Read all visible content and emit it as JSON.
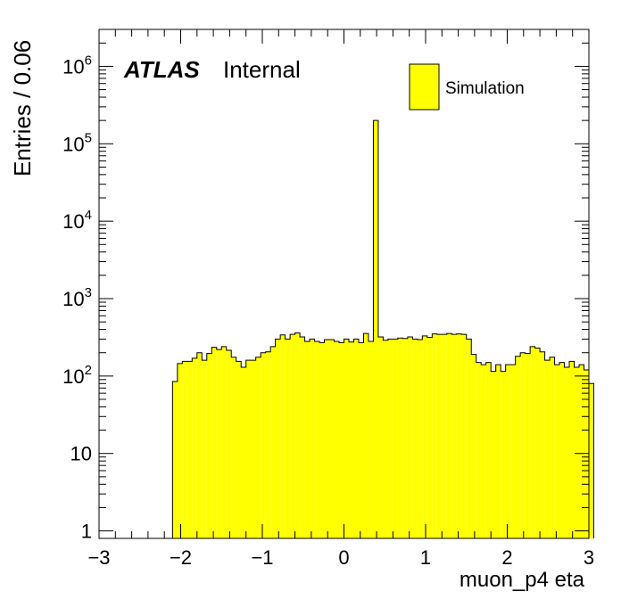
{
  "chart_data": {
    "type": "bar",
    "title": "",
    "xlabel": "muon_p4 eta",
    "ylabel": "Entries / 0.06",
    "xlim": [
      -3,
      3
    ],
    "ylim": [
      0.8,
      3000000
    ],
    "log_y": true,
    "grid": false,
    "bin_width": 0.06,
    "bar_color": "#ffff00",
    "edge_color": "#000000",
    "x_tick_labels": [
      "−3",
      "−2",
      "−1",
      "0",
      "1",
      "2",
      "3"
    ],
    "y_tick_labels": [
      {
        "base": "1",
        "exp": ""
      },
      {
        "base": "10",
        "exp": ""
      },
      {
        "base": "10",
        "exp": "2"
      },
      {
        "base": "10",
        "exp": "3"
      },
      {
        "base": "10",
        "exp": "4"
      },
      {
        "base": "10",
        "exp": "5"
      },
      {
        "base": "10",
        "exp": "6"
      }
    ],
    "bin_edges_start": -2.1,
    "values": [
      85,
      145,
      155,
      155,
      170,
      200,
      160,
      195,
      235,
      220,
      240,
      215,
      175,
      155,
      130,
      160,
      160,
      175,
      200,
      205,
      240,
      300,
      340,
      300,
      345,
      360,
      320,
      280,
      300,
      280,
      270,
      295,
      295,
      280,
      270,
      300,
      275,
      300,
      270,
      355,
      280,
      200000,
      320,
      290,
      300,
      300,
      310,
      305,
      320,
      300,
      295,
      330,
      315,
      350,
      345,
      345,
      355,
      345,
      350,
      345,
      300,
      190,
      150,
      140,
      150,
      115,
      140,
      115,
      140,
      140,
      180,
      200,
      195,
      240,
      230,
      205,
      160,
      175,
      140,
      150,
      130,
      155,
      130,
      140,
      120,
      80
    ],
    "legend": {
      "entries": [
        {
          "name": "Simulation",
          "color": "#ffff00"
        }
      ],
      "position": "top-right"
    },
    "annotations": {
      "experiment": "ATLAS",
      "status": "Internal"
    }
  }
}
